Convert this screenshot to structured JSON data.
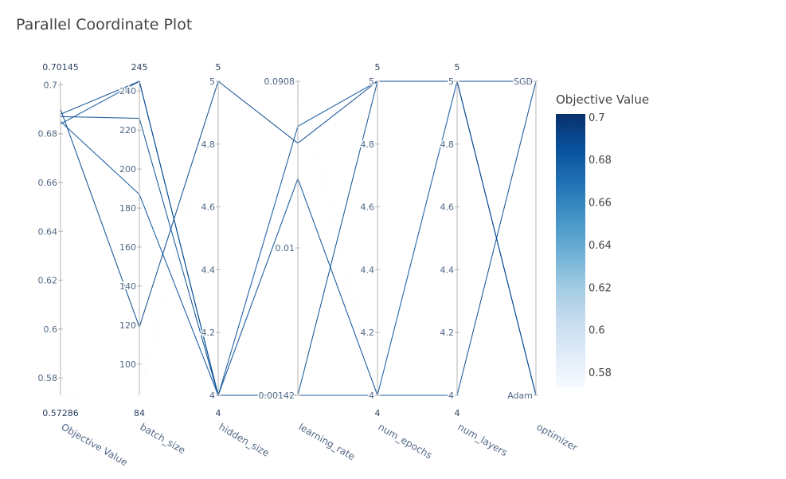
{
  "chart_data": {
    "type": "parallel_coordinates",
    "title": "Parallel Coordinate Plot",
    "dimensions": [
      {
        "name": "Objective Value",
        "kind": "numeric",
        "range": [
          0.57286,
          0.70145
        ],
        "range_labels": [
          "0.57286",
          "0.70145"
        ],
        "ticks": [
          0.58,
          0.6,
          0.62,
          0.64,
          0.66,
          0.68,
          0.7
        ],
        "tick_labels": [
          "0.58",
          "0.6",
          "0.62",
          "0.64",
          "0.66",
          "0.68",
          "0.7"
        ]
      },
      {
        "name": "batch_size",
        "kind": "numeric",
        "range": [
          84,
          245
        ],
        "range_labels": [
          "84",
          "245"
        ],
        "ticks": [
          100,
          120,
          140,
          160,
          180,
          200,
          220,
          240
        ],
        "tick_labels": [
          "100",
          "120",
          "140",
          "160",
          "180",
          "200",
          "220",
          "240"
        ]
      },
      {
        "name": "hidden_size",
        "kind": "numeric",
        "range": [
          4,
          5
        ],
        "range_labels": [
          "4",
          "5"
        ],
        "ticks": [
          4,
          4.2,
          4.4,
          4.6,
          4.8,
          5
        ],
        "tick_labels": [
          "4",
          "4.2",
          "4.4",
          "4.6",
          "4.8",
          "5"
        ]
      },
      {
        "name": "learning_rate",
        "kind": "log",
        "range": [
          0.00142,
          0.0908
        ],
        "range_labels": [
          "",
          ""
        ],
        "ticks": [
          0.00142,
          0.01,
          0.0908
        ],
        "tick_labels": [
          "0.00142",
          "0.01",
          "0.0908"
        ]
      },
      {
        "name": "num_epochs",
        "kind": "numeric",
        "range": [
          4,
          5
        ],
        "range_labels": [
          "4",
          "5"
        ],
        "ticks": [
          4,
          4.2,
          4.4,
          4.6,
          4.8,
          5
        ],
        "tick_labels": [
          "4",
          "4.2",
          "4.4",
          "4.6",
          "4.8",
          "5"
        ]
      },
      {
        "name": "num_layers",
        "kind": "numeric",
        "range": [
          4,
          5
        ],
        "range_labels": [
          "4",
          "5"
        ],
        "ticks": [
          4,
          4.2,
          4.4,
          4.6,
          4.8,
          5
        ],
        "tick_labels": [
          "4",
          "4.2",
          "4.4",
          "4.6",
          "4.8",
          "5"
        ]
      },
      {
        "name": "optimizer",
        "kind": "categorical",
        "categories": [
          "Adam",
          "SGD"
        ],
        "range_labels": [
          "",
          ""
        ],
        "ticks": [
          0,
          1
        ],
        "tick_labels": [
          "Adam",
          "SGD"
        ]
      }
    ],
    "trials": [
      {
        "objective": 0.69,
        "values": [
          0.69,
          119,
          5,
          0.04,
          5,
          5,
          0
        ]
      },
      {
        "objective": 0.688,
        "values": [
          0.688,
          245,
          4,
          0.00142,
          5,
          5,
          1
        ]
      },
      {
        "objective": 0.687,
        "values": [
          0.687,
          226,
          4,
          0.025,
          4,
          4,
          1
        ]
      },
      {
        "objective": 0.685,
        "values": [
          0.685,
          187,
          4,
          0.05,
          5,
          5,
          1
        ]
      },
      {
        "objective": 0.684,
        "values": [
          0.684,
          245,
          4,
          0.00142,
          4,
          5,
          0
        ]
      },
      {
        "objective": 0.573,
        "values": [
          0.573,
          84,
          5,
          0.0908,
          4,
          4,
          1
        ]
      }
    ],
    "colorscale": {
      "title": "Objective Value",
      "min": 0.57286,
      "max": 0.70145,
      "ticks": [
        0.58,
        0.6,
        0.62,
        0.64,
        0.66,
        0.68,
        0.7
      ],
      "tick_labels": [
        "0.58",
        "0.6",
        "0.62",
        "0.64",
        "0.66",
        "0.68",
        "0.7"
      ],
      "stops": [
        "#f7fbff",
        "#deebf7",
        "#c6dbef",
        "#9ecae1",
        "#6baed6",
        "#4292c6",
        "#2171b5",
        "#08519c",
        "#08306b"
      ]
    }
  }
}
